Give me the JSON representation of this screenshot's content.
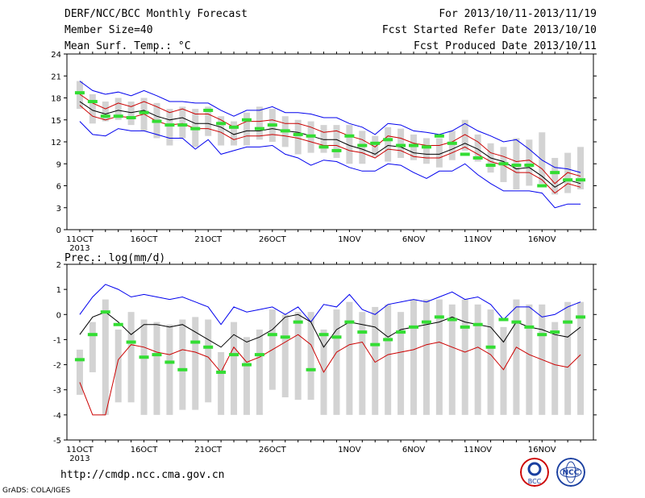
{
  "header": {
    "title": "DERF/NCC/BCC Monthly Forecast",
    "member": "Member Size=40",
    "variable": "Mean Surf. Temp.: °C",
    "period": "For 2013/10/11-2013/11/19",
    "start": "Fcst Started Refer Date 2013/10/10",
    "produced": "Fcst Produced Date 2013/10/11"
  },
  "footer": {
    "url": "http://cmdp.ncc.cma.gov.cn",
    "grads": "GrADS: COLA/IGES",
    "logo_left": "BCC",
    "logo_right": "NCC"
  },
  "colors": {
    "max": "#0000ee",
    "min": "#0000ee",
    "mean": "#000000",
    "median": "#cc0000",
    "box": "#d3d3d3",
    "obs": "#33dd33"
  },
  "chart_data": [
    {
      "type": "box-line",
      "title": "Mean Surf. Temp.: °C",
      "ylim": [
        0,
        24
      ],
      "yticks": [
        0,
        3,
        6,
        9,
        12,
        15,
        18,
        21,
        24
      ],
      "x_tick_labels": [
        "11OCT",
        "16OCT",
        "21OCT",
        "26OCT",
        "1NOV",
        "6NOV",
        "11NOV",
        "16NOV"
      ],
      "x_tick_days": [
        1,
        6,
        11,
        16,
        22,
        27,
        32,
        37
      ],
      "year_label": "2013",
      "days": 40,
      "series": [
        {
          "name": "max",
          "values": [
            20.3,
            19,
            18.5,
            18.8,
            18.3,
            19,
            18.3,
            17.5,
            17.5,
            17.3,
            17.3,
            16.3,
            15.5,
            16.3,
            16.3,
            16.8,
            16,
            16,
            15.8,
            15.3,
            15.3,
            14.5,
            14,
            13,
            14.5,
            14.3,
            13.5,
            13.3,
            13,
            13.5,
            14.5,
            13.5,
            12.8,
            12,
            12.3,
            11,
            9.5,
            8.5,
            8.3,
            7.8
          ]
        },
        {
          "name": "upper",
          "values": [
            18.5,
            17.3,
            16.5,
            17.3,
            16.8,
            17.5,
            16.8,
            16,
            16.5,
            15.8,
            15.8,
            15,
            14,
            14.8,
            14.8,
            15,
            14.5,
            14.5,
            14,
            13.3,
            13.5,
            12.8,
            12.3,
            11.3,
            12.8,
            12.5,
            11.8,
            11.5,
            11.5,
            12,
            13,
            12,
            10.5,
            10,
            9.3,
            9.5,
            8.3,
            6.3,
            7.8,
            7.3
          ]
        },
        {
          "name": "mean",
          "values": [
            17.5,
            16.3,
            15.8,
            16.3,
            16,
            16.3,
            15.5,
            15,
            15.3,
            14.5,
            14.5,
            14,
            13,
            13.5,
            13.5,
            13.8,
            13.5,
            13.3,
            12.8,
            12.3,
            12.3,
            11.5,
            11,
            10.3,
            11.5,
            11.3,
            10.5,
            10.3,
            10.3,
            11,
            11.8,
            11,
            9.8,
            9.3,
            8.3,
            8.5,
            7.3,
            5.8,
            6.8,
            6.3
          ]
        },
        {
          "name": "lower",
          "values": [
            17,
            15.5,
            15,
            15.5,
            15.3,
            15.8,
            14.8,
            14.3,
            14.5,
            13.8,
            13.8,
            13.3,
            12.3,
            12.8,
            12.8,
            13,
            12.8,
            12.5,
            12,
            11.5,
            11.5,
            10.8,
            10.5,
            9.8,
            11,
            10.8,
            10,
            9.8,
            9.8,
            10.5,
            11.3,
            10.3,
            9.3,
            8.8,
            7.8,
            7.8,
            6.8,
            5,
            6.3,
            5.8
          ]
        },
        {
          "name": "min",
          "values": [
            14.8,
            13,
            12.8,
            13.8,
            13.5,
            13.5,
            13,
            12.5,
            12.5,
            11,
            12.3,
            10.3,
            10.8,
            11.3,
            11.3,
            11.5,
            10.3,
            9.8,
            8.8,
            9.5,
            9.3,
            8.5,
            8,
            8,
            9,
            8.8,
            7.8,
            7,
            8,
            8,
            9,
            7.5,
            6.3,
            5.3,
            5.3,
            5.3,
            5,
            3,
            3.5,
            3.5
          ]
        },
        {
          "name": "box_high",
          "values": [
            20.3,
            18.5,
            17.5,
            18,
            17.5,
            18,
            17.3,
            16.5,
            16.8,
            16.5,
            16.8,
            15.5,
            14.8,
            16,
            16.8,
            16.5,
            15.5,
            15,
            14.8,
            14.3,
            14.3,
            14.3,
            13.5,
            12.8,
            14,
            13.8,
            13,
            12.5,
            12.5,
            13.5,
            15,
            13,
            11.8,
            11.3,
            12.5,
            12.3,
            13.3,
            9.8,
            10.5,
            11.3
          ]
        },
        {
          "name": "box_low",
          "values": [
            16.5,
            14.5,
            14.8,
            15,
            14.3,
            13.5,
            12.5,
            11.5,
            12.5,
            11.3,
            12.8,
            11.5,
            11.5,
            11.5,
            12.3,
            12,
            11.3,
            10.3,
            10.5,
            10.5,
            9.8,
            9,
            9,
            10,
            9.3,
            9.8,
            9.5,
            9,
            8.5,
            9.5,
            10.8,
            9.3,
            7.8,
            6.5,
            5.5,
            6,
            6.3,
            4.8,
            5,
            5.5
          ]
        },
        {
          "name": "observed",
          "values": [
            18.7,
            17.5,
            15.5,
            15.5,
            15.3,
            16,
            14.8,
            14.3,
            14.3,
            13.8,
            16.3,
            14.5,
            14,
            15,
            13.8,
            14.3,
            13.5,
            13,
            12.8,
            11.3,
            10.8,
            12.8,
            11.5,
            11.8,
            12.3,
            11.5,
            11.5,
            11.3,
            12.8,
            11.8,
            10.3,
            9.8,
            8.8,
            9,
            8.8,
            8.8,
            6,
            7.8,
            6.8,
            6.8
          ]
        }
      ]
    },
    {
      "type": "box-line",
      "title": "Prec.: log(mm/d)",
      "ylim": [
        -5,
        2
      ],
      "yticks": [
        -5,
        -4,
        -3,
        -2,
        -1,
        0,
        1,
        2
      ],
      "x_tick_labels": [
        "11OCT",
        "16OCT",
        "21OCT",
        "26OCT",
        "1NOV",
        "6NOV",
        "11NOV",
        "16NOV"
      ],
      "x_tick_days": [
        1,
        6,
        11,
        16,
        22,
        27,
        32,
        37
      ],
      "year_label": "2013",
      "days": 40,
      "series": [
        {
          "name": "max",
          "values": [
            0,
            0.7,
            1.2,
            1,
            0.7,
            0.8,
            0.7,
            0.6,
            0.7,
            0.5,
            0.3,
            -0.4,
            0.3,
            0.1,
            0.2,
            0.3,
            0,
            0.3,
            -0.3,
            0.4,
            0.3,
            0.8,
            0.2,
            0,
            0.4,
            0.5,
            0.6,
            0.5,
            0.7,
            0.9,
            0.6,
            0.7,
            0.4,
            -0.2,
            0.3,
            0.3,
            -0.1,
            0,
            0.3,
            0.5
          ]
        },
        {
          "name": "mean",
          "values": [
            -0.8,
            -0.1,
            0.1,
            -0.3,
            -0.8,
            -0.4,
            -0.4,
            -0.5,
            -0.4,
            -0.7,
            -1,
            -1.3,
            -0.8,
            -1.1,
            -0.9,
            -0.6,
            -0.1,
            0,
            -0.3,
            -1.3,
            -0.6,
            -0.3,
            -0.4,
            -0.5,
            -0.9,
            -0.6,
            -0.5,
            -0.4,
            -0.3,
            -0.1,
            -0.3,
            -0.4,
            -0.5,
            -1.1,
            -0.3,
            -0.5,
            -0.6,
            -0.8,
            -0.9,
            -0.5
          ]
        },
        {
          "name": "median",
          "values": [
            -2.7,
            -4,
            -4,
            -1.8,
            -1.2,
            -1.3,
            -1.5,
            -1.6,
            -1.4,
            -1.5,
            -1.7,
            -2.3,
            -1.3,
            -1.9,
            -1.7,
            -1.4,
            -1.1,
            -0.8,
            -1.2,
            -2.3,
            -1.5,
            -1.2,
            -1.1,
            -1.9,
            -1.6,
            -1.5,
            -1.4,
            -1.2,
            -1.1,
            -1.3,
            -1.5,
            -1.3,
            -1.6,
            -2.2,
            -1.3,
            -1.6,
            -1.8,
            -2.0,
            -2.1,
            -1.6
          ]
        },
        {
          "name": "box_high",
          "values": [
            -1.4,
            -0.3,
            0.6,
            -0.6,
            0.1,
            -0.2,
            -0.3,
            -0.4,
            -0.2,
            -0.1,
            -0.2,
            -1.5,
            -0.3,
            -0.9,
            -0.6,
            0.2,
            0,
            0.1,
            0.1,
            -0.6,
            0.2,
            0.5,
            0.1,
            0.3,
            0.4,
            0.1,
            0.6,
            0.6,
            0.6,
            0.4,
            0.6,
            0.4,
            0.2,
            -0.5,
            0.6,
            0.4,
            0.4,
            -0.3,
            0.5,
            0.5
          ]
        },
        {
          "name": "box_low",
          "values": [
            -3.2,
            -2.3,
            -4,
            -3.5,
            -3.5,
            -4,
            -4,
            -4,
            -3.8,
            -3.8,
            -3.5,
            -4,
            -4,
            -4,
            -4,
            -3,
            -3.3,
            -3.4,
            -3.4,
            -4,
            -4,
            -4,
            -4,
            -4,
            -4,
            -4,
            -4,
            -4,
            -4,
            -4,
            -4,
            -4,
            -4,
            -4,
            -4,
            -4,
            -4,
            -4,
            -4,
            -4
          ]
        },
        {
          "name": "observed",
          "values": [
            -1.8,
            -0.8,
            0.1,
            -0.4,
            -1.1,
            -1.7,
            -1.6,
            -1.9,
            -2.2,
            -1.1,
            -1.3,
            -2.3,
            -1.6,
            -2.0,
            -1.6,
            -0.8,
            -0.9,
            -0.3,
            -2.2,
            -0.8,
            -0.9,
            -0.3,
            -0.7,
            -1.2,
            -1.0,
            -0.7,
            -0.5,
            -0.3,
            -0.1,
            -0.2,
            -0.5,
            -0.4,
            -1.3,
            -0.2,
            -0.3,
            -0.5,
            -0.8,
            -0.7,
            -0.3,
            -0.1
          ]
        }
      ]
    }
  ]
}
